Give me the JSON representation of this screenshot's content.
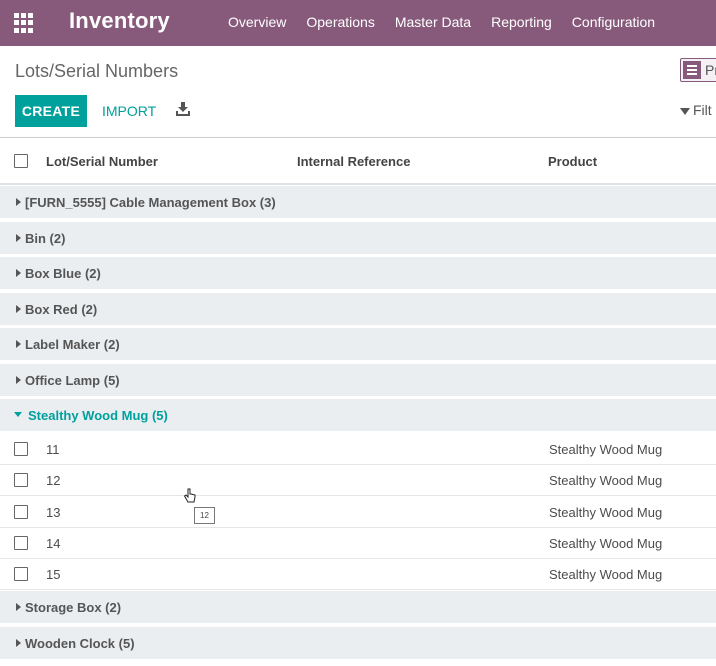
{
  "navbar": {
    "app_title": "Inventory",
    "menu": [
      "Overview",
      "Operations",
      "Master Data",
      "Reporting",
      "Configuration"
    ]
  },
  "control_panel": {
    "breadcrumb": "Lots/Serial Numbers",
    "create_label": "CREATE",
    "import_label": "IMPORT",
    "filters_label": "Filt",
    "view_switch_label": "Pr"
  },
  "table": {
    "columns": [
      "Lot/Serial Number",
      "Internal Reference",
      "Product"
    ],
    "groups_before": [
      "[FURN_5555] Cable Management Box (3)",
      "Bin (2)",
      "Box Blue (2)",
      "Box Red (2)",
      "Label Maker (2)",
      "Office Lamp (5)"
    ],
    "open_group": "Stealthy Wood Mug (5)",
    "rows": [
      {
        "lot": "11",
        "ref": "",
        "product": "Stealthy Wood Mug"
      },
      {
        "lot": "12",
        "ref": "",
        "product": "Stealthy Wood Mug"
      },
      {
        "lot": "13",
        "ref": "",
        "product": "Stealthy Wood Mug"
      },
      {
        "lot": "14",
        "ref": "",
        "product": "Stealthy Wood Mug"
      },
      {
        "lot": "15",
        "ref": "",
        "product": "Stealthy Wood Mug"
      }
    ],
    "groups_after": [
      "Storage Box (2)",
      "Wooden Clock (5)"
    ]
  },
  "tooltip": "12",
  "colors": {
    "brand": "#875a7b",
    "accent": "#00a09d",
    "group_bg": "#ebeef1"
  }
}
